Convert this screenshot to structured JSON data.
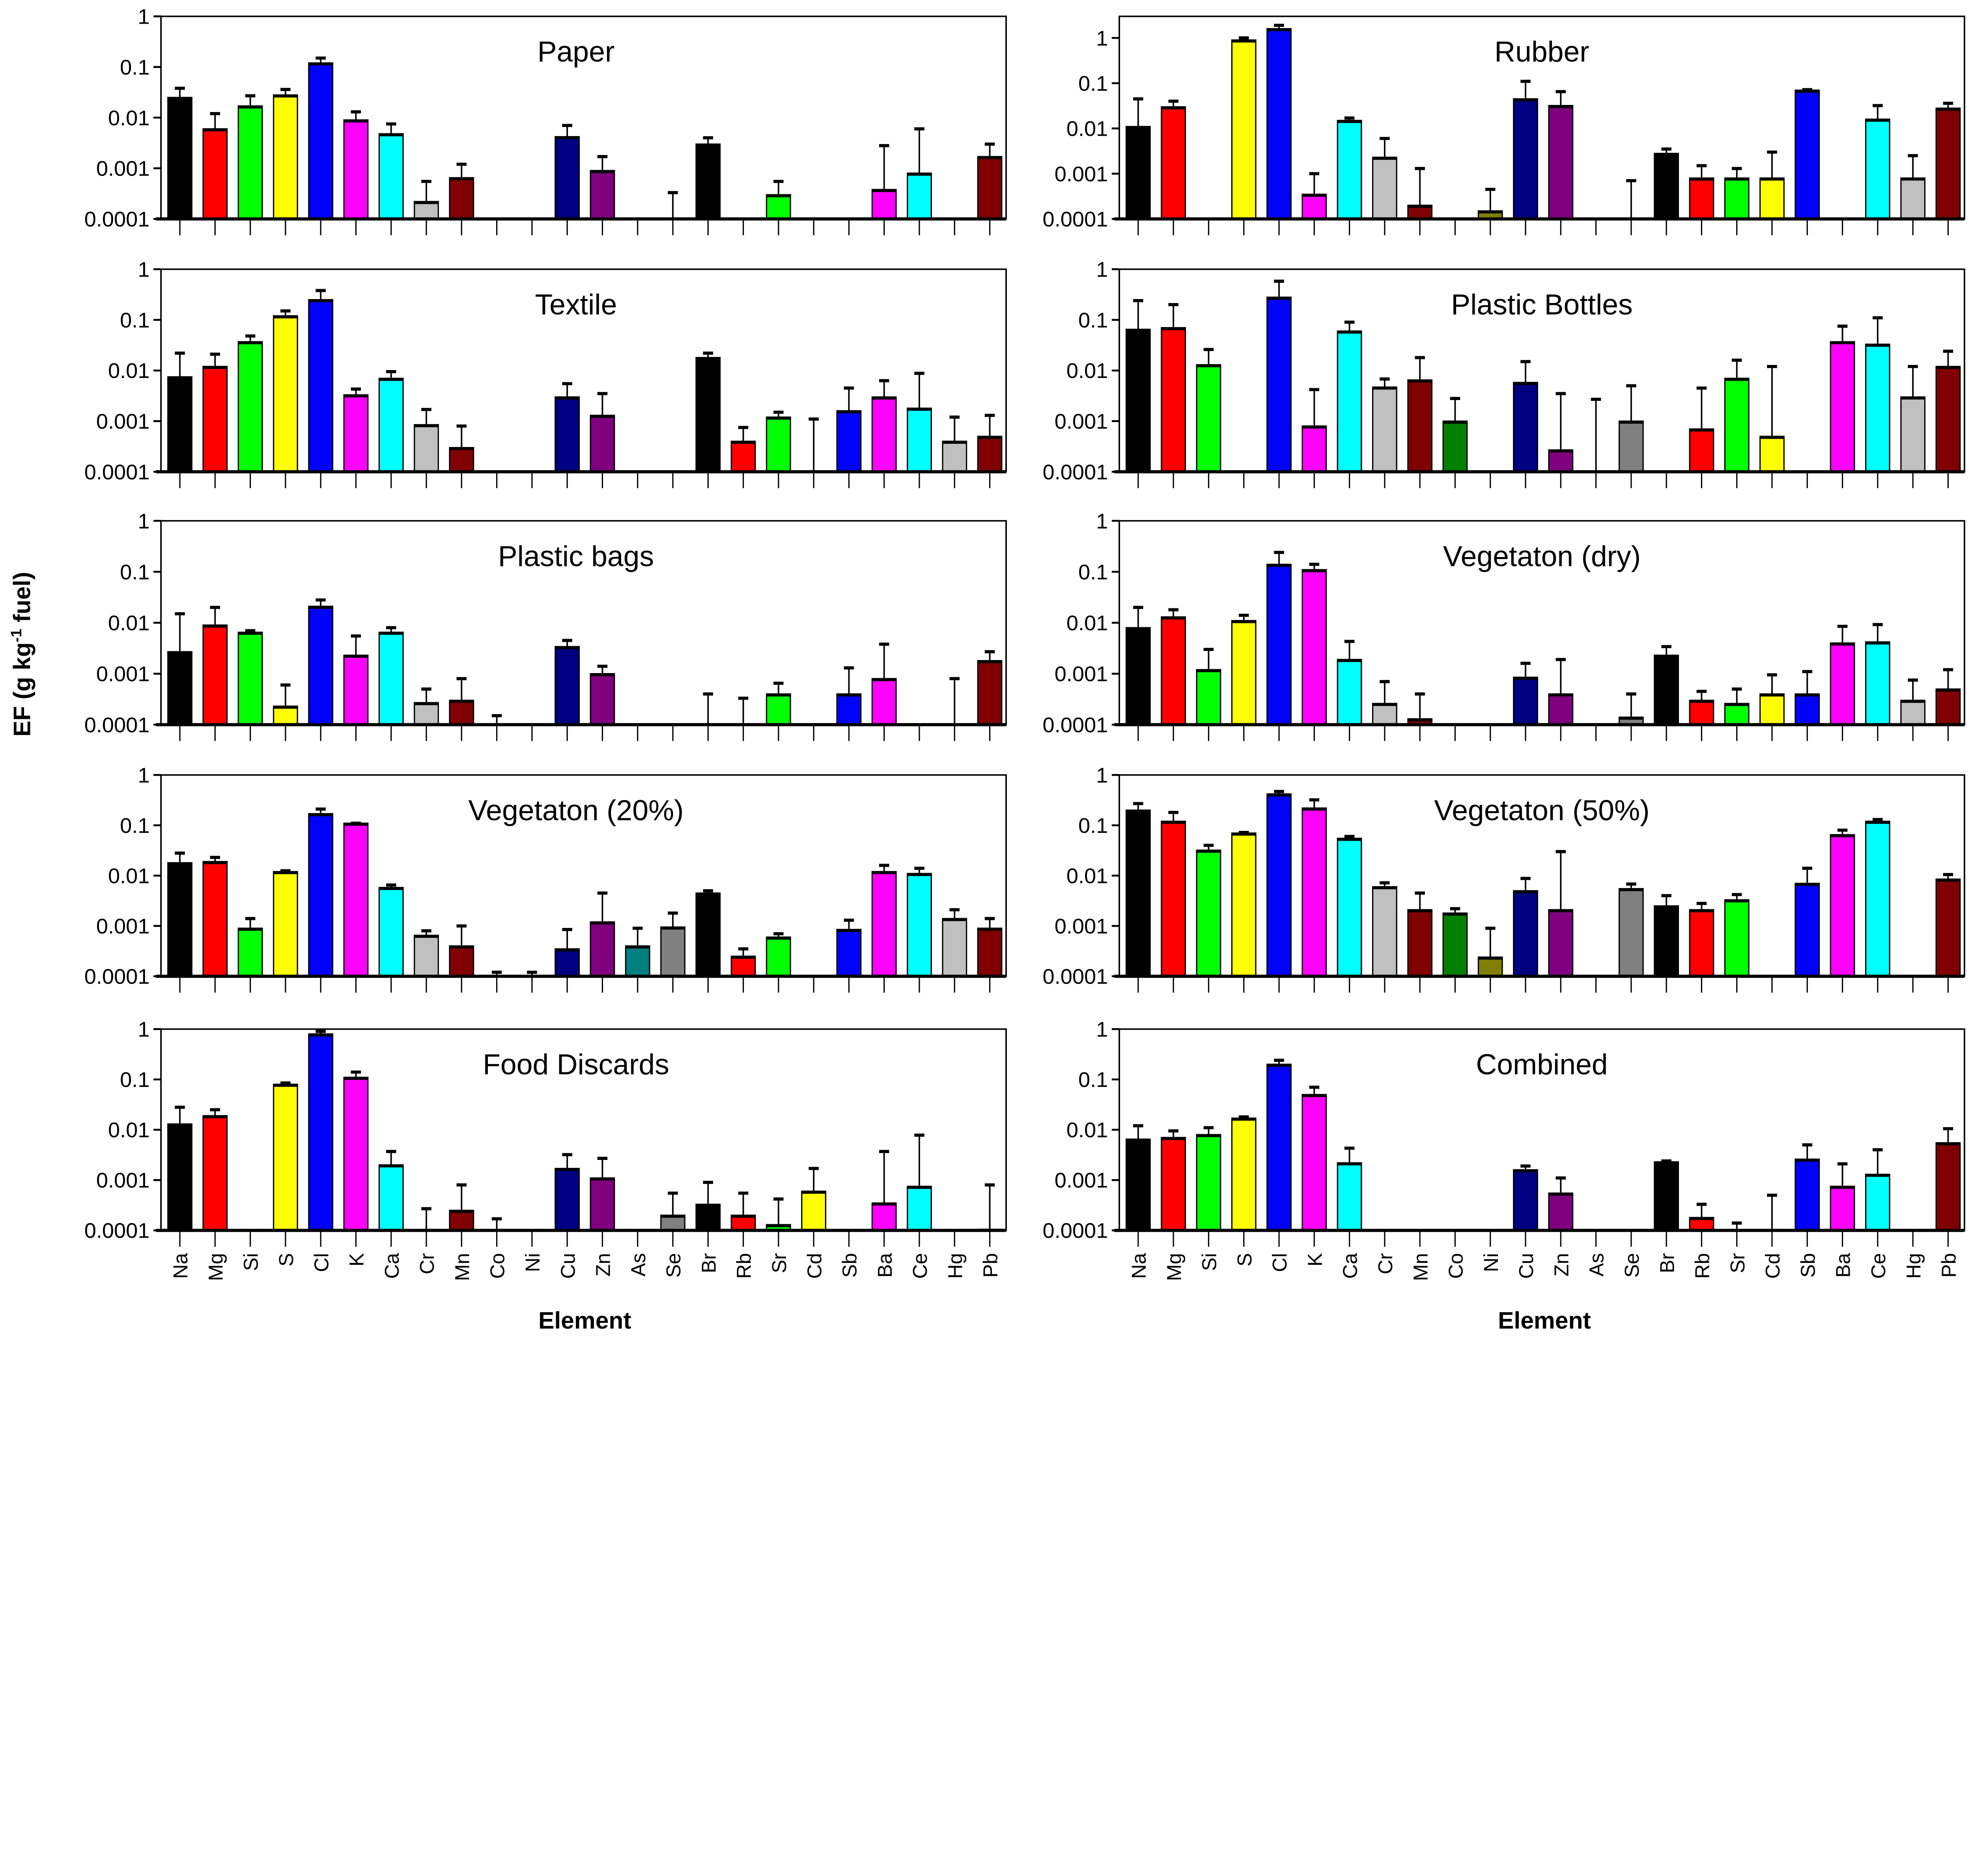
{
  "chart_data": {
    "type": "bar",
    "ylabel": "EF (g kg-1 fuel)",
    "ylabel_parts": {
      "main": "EF (g kg",
      "sup": "-1",
      "tail": " fuel)"
    },
    "xlabel": "Element",
    "yscale": "log",
    "yticks": [
      "1",
      "0.1",
      "0.01",
      "0.001",
      "0.0001"
    ],
    "categories": [
      "Na",
      "Mg",
      "Si",
      "S",
      "Cl",
      "K",
      "Ca",
      "Cr",
      "Mn",
      "Co",
      "Ni",
      "Cu",
      "Zn",
      "As",
      "Se",
      "Br",
      "Rb",
      "Sr",
      "Cd",
      "Sb",
      "Ba",
      "Ce",
      "Hg",
      "Pb"
    ],
    "colors": [
      "#000000",
      "#ff0000",
      "#00ff00",
      "#ffff00",
      "#0000ff",
      "#ff00ff",
      "#00ffff",
      "#c0c0c0",
      "#800000",
      "#008000",
      "#808000",
      "#000080",
      "#800080",
      "#008080",
      "#808080",
      "#000000",
      "#ff0000",
      "#00ff00",
      "#ffff00",
      "#0000ff",
      "#ff00ff",
      "#00ffff",
      "#c0c0c0",
      "#800000"
    ],
    "panels": [
      {
        "title": "Paper",
        "ylim": [
          0.0001,
          1
        ],
        "values": [
          0.025,
          0.006,
          0.017,
          0.028,
          0.12,
          0.009,
          0.0048,
          0.00022,
          0.00065,
          null,
          null,
          0.0042,
          0.0009,
          null,
          0.0001,
          0.003,
          null,
          0.0003,
          null,
          null,
          0.00038,
          0.0008,
          null,
          0.0017
        ],
        "err_upper": [
          0.038,
          0.012,
          0.027,
          0.036,
          0.15,
          0.013,
          0.0075,
          0.00055,
          0.0012,
          null,
          null,
          0.007,
          0.0017,
          null,
          0.00033,
          0.004,
          null,
          0.00055,
          null,
          null,
          0.0028,
          0.006,
          null,
          0.003
        ]
      },
      {
        "title": "Rubber",
        "ylim": [
          0.0001,
          3
        ],
        "values": [
          0.011,
          0.03,
          null,
          0.9,
          1.6,
          0.00035,
          0.015,
          0.0023,
          0.0002,
          null,
          0.00015,
          0.045,
          0.032,
          null,
          0.0001,
          0.0028,
          0.0008,
          0.0008,
          0.0008,
          0.07,
          null,
          0.016,
          0.0008,
          0.028
        ],
        "err_upper": [
          0.045,
          0.04,
          null,
          1.0,
          1.9,
          0.001,
          0.017,
          0.006,
          0.0013,
          null,
          0.00045,
          0.11,
          0.065,
          null,
          0.0007,
          0.0035,
          0.0015,
          0.0013,
          0.003,
          0.072,
          null,
          0.032,
          0.0025,
          0.036
        ]
      },
      {
        "title": "Textile",
        "ylim": [
          0.0001,
          1
        ],
        "values": [
          0.0075,
          0.012,
          0.037,
          0.12,
          0.25,
          0.0033,
          0.007,
          0.00085,
          0.0003,
          null,
          null,
          0.003,
          0.0013,
          null,
          null,
          0.018,
          0.0004,
          0.0012,
          0.0001,
          0.0016,
          0.003,
          0.0018,
          0.0004,
          0.0005
        ],
        "err_upper": [
          0.022,
          0.021,
          0.048,
          0.15,
          0.38,
          0.0043,
          0.0095,
          0.0017,
          0.0008,
          null,
          null,
          0.0055,
          0.0035,
          null,
          null,
          0.022,
          0.00075,
          0.0015,
          0.0011,
          0.0045,
          0.0063,
          0.0088,
          0.0012,
          0.0013
        ]
      },
      {
        "title": "Plastic Bottles",
        "ylim": [
          0.0001,
          1
        ],
        "values": [
          0.065,
          0.07,
          0.013,
          null,
          0.28,
          0.0008,
          0.06,
          0.0047,
          0.0065,
          0.001,
          null,
          0.0058,
          0.00027,
          0.0001,
          0.001,
          null,
          0.0007,
          0.007,
          0.0005,
          null,
          0.037,
          0.033,
          0.003,
          0.012
        ],
        "err_upper": [
          0.24,
          0.2,
          0.026,
          null,
          0.58,
          0.0042,
          0.09,
          0.0068,
          0.018,
          0.0028,
          null,
          0.015,
          0.0035,
          0.0027,
          0.005,
          null,
          0.0045,
          0.016,
          0.012,
          null,
          0.075,
          0.11,
          0.012,
          0.024
        ]
      },
      {
        "title": "Plastic bags",
        "ylim": [
          0.0001,
          1
        ],
        "values": [
          0.0027,
          0.009,
          0.0065,
          0.00023,
          0.021,
          0.0023,
          0.0065,
          0.00027,
          0.0003,
          0.0001,
          null,
          0.0034,
          0.001,
          null,
          null,
          0.0001,
          0.0001,
          0.0004,
          null,
          0.0004,
          0.0008,
          null,
          0.0001,
          0.0018
        ],
        "err_upper": [
          0.015,
          0.02,
          0.007,
          0.0006,
          0.028,
          0.0055,
          0.008,
          0.0005,
          0.0008,
          0.00015,
          null,
          0.0045,
          0.0014,
          null,
          null,
          0.0004,
          0.00033,
          0.00065,
          null,
          0.0013,
          0.0038,
          null,
          0.0008,
          0.0027
        ]
      },
      {
        "title": "Vegetaton (dry)",
        "ylim": [
          0.0001,
          1
        ],
        "values": [
          0.008,
          0.013,
          0.0012,
          0.011,
          0.14,
          0.11,
          0.0019,
          0.00026,
          0.00013,
          null,
          null,
          0.00085,
          0.0004,
          null,
          0.00014,
          0.0023,
          0.0003,
          0.00026,
          0.0004,
          0.0004,
          0.004,
          0.0042,
          0.0003,
          0.0005
        ],
        "err_upper": [
          0.02,
          0.018,
          0.003,
          0.014,
          0.24,
          0.14,
          0.0043,
          0.0007,
          0.0004,
          null,
          null,
          0.0016,
          0.0019,
          null,
          0.0004,
          0.0034,
          0.00045,
          0.0005,
          0.00095,
          0.0011,
          0.0085,
          0.0092,
          0.00075,
          0.0012
        ]
      },
      {
        "title": "Vegetaton (20%)",
        "ylim": [
          0.0001,
          1
        ],
        "values": [
          0.018,
          0.019,
          0.0009,
          0.012,
          0.17,
          0.11,
          0.0058,
          0.00065,
          0.0004,
          0.0001,
          0.0001,
          0.00035,
          0.0012,
          0.0004,
          0.00095,
          0.0045,
          0.00025,
          0.0006,
          null,
          0.00085,
          0.012,
          0.011,
          0.0014,
          0.0009
        ],
        "err_upper": [
          0.028,
          0.023,
          0.0014,
          0.0125,
          0.21,
          0.11,
          0.0065,
          0.0008,
          0.001,
          0.00012,
          0.00012,
          0.00085,
          0.0045,
          0.0009,
          0.0018,
          0.005,
          0.00035,
          0.0007,
          null,
          0.0013,
          0.016,
          0.014,
          0.0021,
          0.0014
        ]
      },
      {
        "title": "Vegetaton (50%)",
        "ylim": [
          0.0001,
          1
        ],
        "values": [
          0.2,
          0.12,
          0.032,
          0.07,
          0.42,
          0.22,
          0.055,
          0.006,
          0.0021,
          0.0018,
          0.00024,
          0.005,
          0.0021,
          null,
          0.0055,
          0.0025,
          0.0021,
          0.0033,
          null,
          0.007,
          0.065,
          0.12,
          null,
          0.0085
        ],
        "err_upper": [
          0.27,
          0.18,
          0.04,
          0.072,
          0.47,
          0.32,
          0.06,
          0.0072,
          0.0045,
          0.0022,
          0.0009,
          0.0088,
          0.03,
          null,
          0.0068,
          0.004,
          0.0028,
          0.0042,
          null,
          0.014,
          0.08,
          0.13,
          null,
          0.0105
        ]
      },
      {
        "title": "Food Discards",
        "ylim": [
          0.0001,
          1
        ],
        "values": [
          0.013,
          0.019,
          null,
          0.08,
          0.8,
          0.11,
          0.002,
          0.0001,
          0.00025,
          0.0001,
          null,
          0.0017,
          0.0011,
          null,
          0.0002,
          0.00033,
          0.0002,
          0.00013,
          0.0006,
          null,
          0.00035,
          0.00075,
          null,
          0.000105
        ],
        "err_upper": [
          0.028,
          0.025,
          null,
          0.085,
          0.9,
          0.14,
          0.0037,
          0.00027,
          0.0008,
          0.00017,
          null,
          0.0032,
          0.0027,
          null,
          0.00055,
          0.0009,
          0.00055,
          0.00042,
          0.0017,
          null,
          0.0037,
          0.0078,
          null,
          0.0008
        ]
      },
      {
        "title": "Combined",
        "ylim": [
          0.0001,
          1
        ],
        "values": [
          0.0065,
          0.007,
          0.008,
          0.017,
          0.2,
          0.05,
          0.0022,
          null,
          null,
          null,
          null,
          0.0016,
          0.00055,
          null,
          null,
          0.0023,
          0.00018,
          0.0001,
          0.0001,
          0.0026,
          0.00075,
          0.0013,
          null,
          0.0055
        ],
        "err_upper": [
          0.012,
          0.0095,
          0.011,
          0.018,
          0.24,
          0.07,
          0.0043,
          null,
          null,
          null,
          null,
          0.0019,
          0.0011,
          null,
          null,
          0.0024,
          0.00033,
          0.00014,
          0.0005,
          0.005,
          0.0021,
          0.004,
          null,
          0.0105
        ]
      }
    ]
  }
}
